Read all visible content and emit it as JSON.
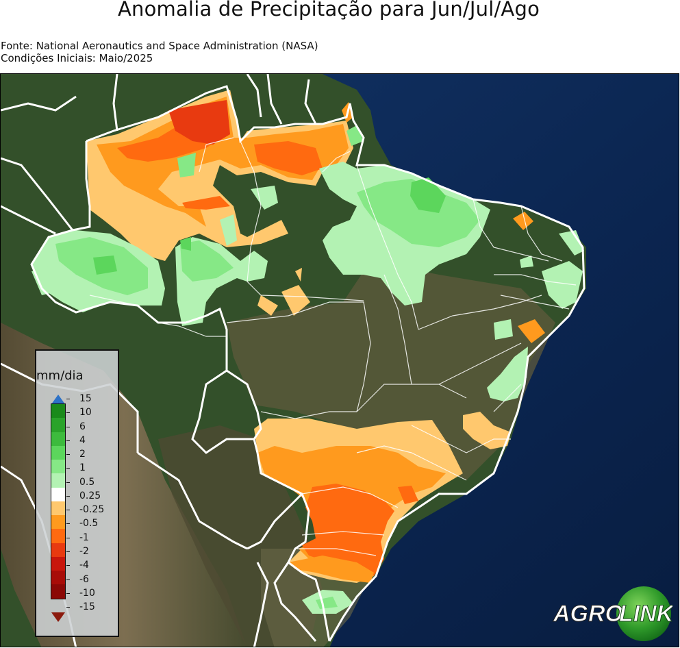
{
  "title": "Anomalia de Precipitação para Jun/Jul/Ago",
  "source_line": "Fonte: National Aeronautics and Space Administration (NASA)",
  "initial_conditions": "Condições Iniciais: Maio/2025",
  "legend": {
    "unit": "mm/dia",
    "ticks": [
      "15",
      "10",
      "6",
      "4",
      "2",
      "1",
      "0.5",
      "0.25",
      "-0.25",
      "-0.5",
      "-1",
      "-2",
      "-4",
      "-6",
      "-10",
      "-15"
    ],
    "colors": [
      "#1a8a1a",
      "#2aa32a",
      "#3dbb3d",
      "#5cd65c",
      "#86e886",
      "#b3f2b3",
      "#ffffff",
      "#ffc86e",
      "#ff9a1e",
      "#ff6a10",
      "#e83a10",
      "#c8160c",
      "#a80c08",
      "#8b0806"
    ],
    "extend_max_color": "#2d72c7",
    "extend_min_color": "#8b1a0d"
  },
  "logo": {
    "text_left": "AGRO",
    "text_right": "LINK"
  },
  "colors": {
    "ocean": "#0d2a55",
    "land_forest": "#2d4a22",
    "land_dry": "#6b6043",
    "border": "#ffffff"
  }
}
